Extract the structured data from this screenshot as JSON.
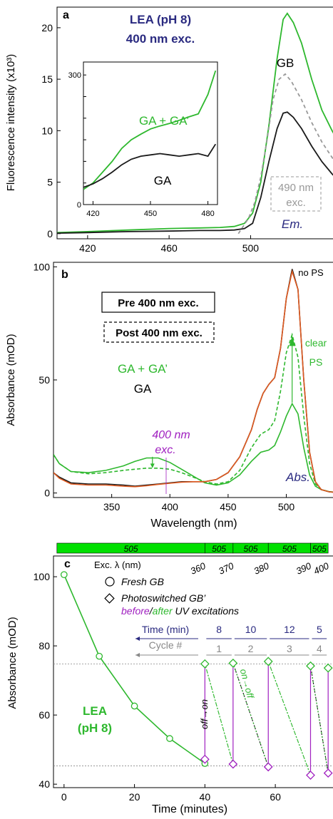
{
  "colors": {
    "green": "#2eb82e",
    "black": "#1a1a1a",
    "navy": "#2a2a80",
    "purple": "#a020c0",
    "gray": "#999999",
    "orange": "#e05a20",
    "bright_green": "#00e000"
  },
  "chart_data": [
    {
      "panel": "a",
      "type": "line",
      "ylabel": "Fluorescence intensity (x10³)",
      "xlim": [
        405,
        545
      ],
      "ylim": [
        -0.5,
        22
      ],
      "xticks": [
        420,
        460,
        500
      ],
      "yticks": [
        0,
        5,
        10,
        15,
        20
      ],
      "annotations": {
        "title1": "LEA (pH 8)",
        "title2": "400 nm exc.",
        "gb": "GB",
        "exc490a": "490 nm",
        "exc490b": "exc.",
        "em": "Em."
      },
      "series": [
        {
          "name": "GA + GA’",
          "color": "green",
          "dash": false,
          "x": [
            405,
            420,
            440,
            460,
            475,
            485,
            492,
            497,
            501,
            505,
            509,
            513,
            516,
            518,
            521,
            525,
            530,
            535,
            540,
            545
          ],
          "y": [
            0.1,
            0.2,
            0.35,
            0.5,
            0.55,
            0.6,
            0.7,
            1.0,
            2.0,
            5.0,
            10.5,
            17.0,
            20.8,
            21.4,
            20.5,
            18.5,
            15.0,
            12.0,
            10.0,
            8.2
          ]
        },
        {
          "name": "GB",
          "color": "black",
          "dash": false,
          "x": [
            405,
            420,
            440,
            460,
            475,
            485,
            492,
            497,
            501,
            505,
            509,
            513,
            516,
            518,
            521,
            525,
            530,
            535,
            540,
            545
          ],
          "y": [
            0.05,
            0.1,
            0.2,
            0.25,
            0.3,
            0.3,
            0.35,
            0.5,
            1.0,
            3.5,
            7.0,
            10.2,
            11.7,
            11.8,
            11.3,
            10.2,
            8.5,
            7.0,
            5.8,
            4.8
          ]
        },
        {
          "name": "490 nm exc.",
          "color": "gray",
          "dash": true,
          "x": [
            494,
            496,
            499,
            502,
            505,
            508,
            511,
            514,
            517,
            520,
            525,
            530,
            535,
            540,
            545
          ],
          "y": [
            0.0,
            0.6,
            1.5,
            3.0,
            5.5,
            9.0,
            13.0,
            15.0,
            15.5,
            14.8,
            13.0,
            10.8,
            8.9,
            7.4,
            6.0
          ]
        }
      ]
    },
    {
      "panel": "a-inset",
      "type": "line",
      "xlim": [
        415,
        485
      ],
      "ylim": [
        0,
        330
      ],
      "xticks": [
        420,
        450,
        480
      ],
      "yticks": [
        0,
        300
      ],
      "series": [
        {
          "name": "GA + GA’",
          "color": "green",
          "dash": false,
          "x": [
            415,
            420,
            425,
            430,
            435,
            440,
            445,
            450,
            455,
            460,
            465,
            470,
            475,
            480,
            484
          ],
          "y": [
            35,
            50,
            75,
            100,
            130,
            150,
            163,
            175,
            182,
            188,
            195,
            203,
            210,
            255,
            310
          ]
        },
        {
          "name": "GA",
          "color": "black",
          "dash": false,
          "x": [
            415,
            420,
            425,
            430,
            435,
            440,
            445,
            450,
            455,
            460,
            465,
            470,
            475,
            480,
            484
          ],
          "y": [
            40,
            48,
            60,
            75,
            92,
            105,
            112,
            115,
            118,
            115,
            112,
            115,
            118,
            112,
            140
          ]
        }
      ]
    },
    {
      "panel": "b",
      "type": "line",
      "ylabel": "Absorbance (mOD)",
      "xlabel": "Wavelength (nm)",
      "xlim": [
        300,
        545
      ],
      "ylim": [
        -2,
        102
      ],
      "xticks": [
        350,
        400,
        450,
        500
      ],
      "yticks": [
        0,
        50,
        100
      ],
      "legend": {
        "pre": "Pre 400 nm exc.",
        "post": "Post 400 nm exc."
      },
      "annotations": {
        "noPS": "no PS",
        "clear": "clear",
        "ps": "PS",
        "exc400a": "400 nm",
        "exc400b": "exc.",
        "abs": "Abs.",
        "ga_ga": "GA + GA’",
        "ga": "GA"
      },
      "series": [
        {
          "name": "Pre 400 nm exc. (green)",
          "color": "green",
          "dash": false,
          "x": [
            300,
            305,
            315,
            330,
            345,
            360,
            370,
            380,
            390,
            400,
            410,
            420,
            430,
            440,
            450,
            460,
            470,
            478,
            485,
            490,
            495,
            500,
            505,
            510,
            515,
            520,
            525,
            530,
            537,
            545
          ],
          "y": [
            17,
            13,
            9.5,
            9,
            10,
            12,
            14,
            15.5,
            15.5,
            13.5,
            10.5,
            7.5,
            4.5,
            3.5,
            4.5,
            8,
            14,
            18,
            19,
            21,
            27,
            34,
            39.5,
            35,
            20,
            8,
            3,
            1.5,
            0.6,
            0.2
          ]
        },
        {
          "name": "Post 400 nm exc. (green)",
          "color": "green",
          "dash": true,
          "x": [
            300,
            305,
            315,
            330,
            345,
            360,
            370,
            380,
            390,
            400,
            410,
            420,
            430,
            440,
            450,
            460,
            470,
            478,
            485,
            490,
            495,
            500,
            505,
            510,
            515,
            520,
            525,
            530,
            537,
            545
          ],
          "y": [
            17,
            13,
            9.5,
            8.5,
            9,
            10,
            10.5,
            11,
            11,
            10.5,
            9,
            7,
            5,
            4,
            5,
            10,
            20,
            26,
            28,
            32,
            45,
            62,
            70,
            60,
            34,
            13,
            4,
            1.5,
            0.6,
            0.2
          ]
        },
        {
          "name": "Pre 400 nm exc. (black)",
          "color": "black",
          "dash": false,
          "x": [
            300,
            305,
            315,
            330,
            345,
            360,
            370,
            380,
            390,
            400,
            410,
            420,
            430,
            440,
            450,
            460,
            470,
            475,
            480,
            485,
            490,
            495,
            500,
            505,
            510,
            515,
            520,
            525,
            530,
            537,
            545
          ],
          "y": [
            9,
            7,
            4.5,
            4,
            4,
            3.5,
            3,
            3.5,
            4,
            4.5,
            5,
            5,
            5,
            6,
            9,
            16,
            28,
            37,
            44,
            48,
            51,
            64,
            86,
            99,
            90,
            50,
            18,
            5,
            1.5,
            0.5,
            0.2
          ]
        },
        {
          "name": "Post 400 nm exc. (orange)",
          "color": "orange",
          "dash": false,
          "x": [
            300,
            305,
            315,
            330,
            345,
            360,
            370,
            380,
            390,
            400,
            410,
            420,
            430,
            440,
            450,
            460,
            470,
            475,
            480,
            485,
            490,
            495,
            500,
            505,
            510,
            515,
            520,
            525,
            530,
            537,
            545
          ],
          "y": [
            9,
            6.5,
            4,
            3.5,
            3.5,
            3,
            2.8,
            3.2,
            3.8,
            4.3,
            4.8,
            5,
            5,
            6,
            9,
            16,
            28,
            37,
            44,
            48,
            51,
            64,
            86,
            98,
            90,
            50,
            18,
            5,
            1.5,
            0.5,
            0.2
          ]
        }
      ]
    },
    {
      "panel": "c",
      "type": "scatter",
      "ylabel": "Absorbance (mOD)",
      "xlabel": "Time (minutes)",
      "xlim": [
        -3,
        78
      ],
      "ylim": [
        39,
        106
      ],
      "xticks": [
        0,
        20,
        40,
        60
      ],
      "yticks": [
        40,
        60,
        80,
        100
      ],
      "hlines": [
        74.8,
        45.3
      ],
      "exc_bar": [
        {
          "label": "505",
          "from": -3,
          "to": 40
        },
        {
          "label": "505",
          "from": 40,
          "to": 48
        },
        {
          "label": "505",
          "from": 48,
          "to": 58
        },
        {
          "label": "505",
          "from": 58,
          "to": 70
        },
        {
          "label": "505",
          "from": 70,
          "to": 75
        }
      ],
      "exc_label": "Exc. λ (nm)",
      "uv_wavelengths": [
        {
          "label": "360",
          "x": 40
        },
        {
          "label": "370",
          "x": 48
        },
        {
          "label": "380",
          "x": 58
        },
        {
          "label": "390",
          "x": 70
        },
        {
          "label": "400",
          "x": 75
        }
      ],
      "legend": {
        "fresh": "Fresh GB",
        "photo": "Photoswitched GB’",
        "before": "before",
        "slash": "/",
        "after": "after",
        "uv": " UV excitations"
      },
      "cycle_header": {
        "time": "Time (min)",
        "cycle": "Cycle #"
      },
      "cycles": [
        {
          "cycle": "1",
          "time": "8",
          "from": 40,
          "to": 48
        },
        {
          "cycle": "2",
          "time": "10",
          "from": 48,
          "to": 58
        },
        {
          "cycle": "3",
          "time": "12",
          "from": 58,
          "to": 70
        },
        {
          "cycle": "4",
          "time": "5",
          "from": 70,
          "to": 75
        }
      ],
      "annotations": {
        "lea1": "LEA",
        "lea2": "(pH 8)",
        "offon": "off→on",
        "onoff": "on→off"
      },
      "fresh": {
        "x": [
          0,
          10,
          20,
          30,
          40
        ],
        "y": [
          100.6,
          77.0,
          62.6,
          53.2,
          46.0
        ]
      },
      "photo_before": {
        "x": [
          40,
          48,
          58,
          70,
          75
        ],
        "y": [
          47.2,
          45.8,
          45.0,
          42.6,
          43.2
        ]
      },
      "photo_after": {
        "x": [
          40,
          48,
          58,
          70,
          75
        ],
        "y": [
          74.8,
          75.0,
          75.5,
          74.2,
          73.6
        ]
      }
    }
  ]
}
